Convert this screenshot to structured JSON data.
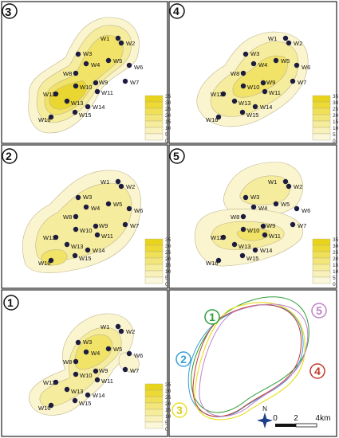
{
  "panels": [
    {
      "key": "p3",
      "number": "3"
    },
    {
      "key": "p4",
      "number": "4"
    },
    {
      "key": "p2",
      "number": "2"
    },
    {
      "key": "p5",
      "number": "5"
    },
    {
      "key": "p1",
      "number": "1"
    },
    {
      "key": "p6",
      "number": ""
    }
  ],
  "wells": [
    "W1",
    "W2",
    "W3",
    "W4",
    "W5",
    "W6",
    "W7",
    "W8",
    "W9",
    "W10",
    "W11",
    "W12",
    "W13",
    "W14",
    "W15",
    "W16"
  ],
  "legend_ticks": [
    "35",
    "30",
    "25",
    "20",
    "15",
    "10",
    "5",
    "0"
  ],
  "outline_labels": [
    {
      "number": "1",
      "color": "#2e9e3a"
    },
    {
      "number": "2",
      "color": "#3aa0d8"
    },
    {
      "number": "3",
      "color": "#e8e02a"
    },
    {
      "number": "4",
      "color": "#c0392b"
    },
    {
      "number": "5",
      "color": "#c080c8"
    }
  ],
  "scale_bar": {
    "labels": [
      "0",
      "2",
      "4km"
    ]
  },
  "north_label": "N"
}
